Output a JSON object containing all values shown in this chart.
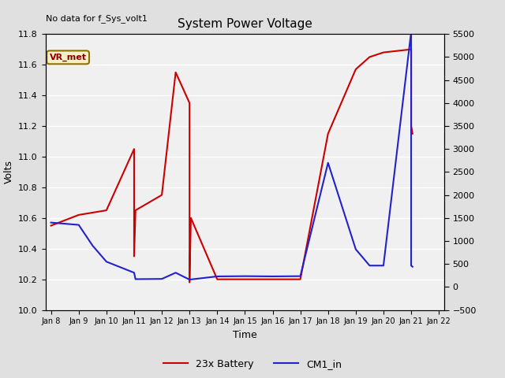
{
  "title": "System Power Voltage",
  "no_data_label": "No data for f_Sys_volt1",
  "xlabel": "Time",
  "ylabel_left": "Volts",
  "ylim_left": [
    10.0,
    11.8
  ],
  "ylim_right": [
    -500,
    5500
  ],
  "yticks_left": [
    10.0,
    10.2,
    10.4,
    10.6,
    10.8,
    11.0,
    11.2,
    11.4,
    11.6,
    11.8
  ],
  "yticks_right": [
    -500,
    0,
    500,
    1000,
    1500,
    2000,
    2500,
    3000,
    3500,
    4000,
    4500,
    5000,
    5500
  ],
  "vr_met_label": "VR_met",
  "fig_facecolor": "#e0e0e0",
  "plot_bg_color": "#f0f0f0",
  "red_series_name": "23x Battery",
  "blue_series_name": "CM1_in",
  "red_color": "#cc0000",
  "blue_color": "#2222cc",
  "red_x": [
    8,
    9,
    10,
    11,
    11,
    11.05,
    12,
    12.5,
    13,
    13,
    13.05,
    14,
    15,
    16,
    17,
    18,
    19,
    19.5,
    20,
    21,
    21,
    21.05
  ],
  "red_y": [
    10.55,
    10.62,
    10.65,
    11.05,
    10.35,
    10.65,
    10.75,
    11.55,
    11.35,
    10.18,
    10.6,
    10.2,
    10.2,
    10.2,
    10.2,
    11.15,
    11.57,
    11.65,
    11.68,
    11.7,
    11.2,
    11.15
  ],
  "blue_x": [
    8,
    9,
    9.5,
    10,
    11,
    11.05,
    12,
    12.5,
    13,
    14,
    15,
    16,
    17,
    18,
    19,
    19.5,
    20,
    21,
    21,
    21.05
  ],
  "blue_y": [
    1400,
    1350,
    900,
    550,
    310,
    170,
    175,
    310,
    160,
    230,
    235,
    230,
    235,
    2700,
    820,
    465,
    465,
    5550,
    465,
    440
  ],
  "xtick_positions": [
    8,
    9,
    10,
    11,
    12,
    13,
    14,
    15,
    16,
    17,
    18,
    19,
    20,
    21,
    22
  ],
  "xtick_labels": [
    "Jan 8",
    "Jan 9",
    "Jan 10",
    "Jan 11",
    "Jan 12",
    "Jan 13",
    "Jan 14",
    "Jan 15",
    "Jan 16",
    "Jan 17",
    "Jan 18",
    "Jan 19",
    "Jan 20",
    "Jan 21",
    "Jan 22"
  ],
  "xlim": [
    7.8,
    22.2
  ],
  "grid_color": "#ffffff",
  "grid_linewidth": 1.0
}
